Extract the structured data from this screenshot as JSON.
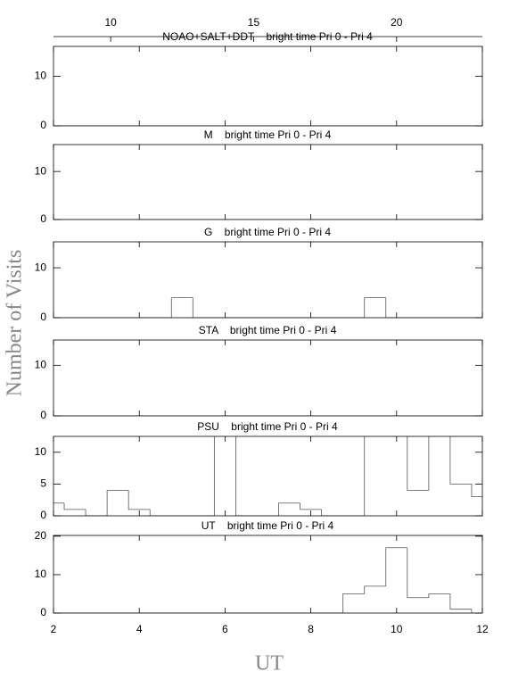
{
  "figure": {
    "xlabel": "UT",
    "ylabel": "Number of Visits",
    "xlim": [
      2,
      12
    ],
    "xticks": [
      2,
      4,
      6,
      8,
      10,
      12
    ],
    "top_xlim": [
      8,
      23
    ],
    "top_xticks": [
      10,
      15,
      20
    ]
  },
  "chart_data": [
    {
      "type": "histogram",
      "title": "NOAO+SALT+DDT    bright time Pri 0 - Pri 4",
      "bins": [
        1.75,
        2.25,
        2.75,
        3.25,
        3.75,
        4.25,
        4.75,
        5.25,
        5.75,
        6.25,
        6.75,
        7.25,
        7.75,
        8.25,
        8.75,
        9.25,
        9.75,
        10.25,
        10.75,
        11.25,
        11.75,
        12.25
      ],
      "values": [
        0,
        0,
        0,
        0,
        0,
        0,
        0,
        0,
        0,
        0,
        0,
        0,
        0,
        0,
        0,
        0,
        0,
        0,
        0,
        0,
        0
      ],
      "ylim": [
        0,
        16
      ],
      "yticks": [
        0,
        10
      ]
    },
    {
      "type": "histogram",
      "title": "M    bright time Pri 0 - Pri 4",
      "bins": [
        1.75,
        2.25,
        2.75,
        3.25,
        3.75,
        4.25,
        4.75,
        5.25,
        5.75,
        6.25,
        6.75,
        7.25,
        7.75,
        8.25,
        8.75,
        9.25,
        9.75,
        10.25,
        10.75,
        11.25,
        11.75,
        12.25
      ],
      "values": [
        0,
        0,
        0,
        0,
        0,
        0,
        0,
        0,
        0,
        0,
        0,
        0,
        0,
        0,
        0,
        0,
        0,
        0,
        0,
        0,
        0
      ],
      "ylim": [
        0,
        15.6
      ],
      "yticks": [
        0,
        10
      ]
    },
    {
      "type": "histogram",
      "title": "G    bright time Pri 0 - Pri 4",
      "bins": [
        1.75,
        2.25,
        2.75,
        3.25,
        3.75,
        4.25,
        4.75,
        5.25,
        5.75,
        6.25,
        6.75,
        7.25,
        7.75,
        8.25,
        8.75,
        9.25,
        9.75,
        10.25,
        10.75,
        11.25,
        11.75,
        12.25
      ],
      "values": [
        0,
        0,
        0,
        0,
        0,
        0,
        4,
        0,
        0,
        0,
        0,
        0,
        0,
        0,
        0,
        4,
        0,
        0,
        0,
        0,
        0
      ],
      "ylim": [
        0,
        15.2
      ],
      "yticks": [
        0,
        10
      ]
    },
    {
      "type": "histogram",
      "title": "STA    bright time Pri 0 - Pri 4",
      "bins": [
        1.75,
        2.25,
        2.75,
        3.25,
        3.75,
        4.25,
        4.75,
        5.25,
        5.75,
        6.25,
        6.75,
        7.25,
        7.75,
        8.25,
        8.75,
        9.25,
        9.75,
        10.25,
        10.75,
        11.25,
        11.75,
        12.25
      ],
      "values": [
        0,
        0,
        0,
        0,
        0,
        0,
        0,
        0,
        0,
        0,
        0,
        0,
        0,
        0,
        0,
        0,
        0,
        0,
        0,
        0,
        0
      ],
      "ylim": [
        0,
        15
      ],
      "yticks": [
        0,
        10
      ]
    },
    {
      "type": "histogram",
      "title": "PSU    bright time Pri 0 - Pri 4",
      "bins": [
        1.75,
        2.25,
        2.75,
        3.25,
        3.75,
        4.25,
        4.75,
        5.25,
        5.75,
        6.25,
        6.75,
        7.25,
        7.75,
        8.25,
        8.75,
        9.25,
        9.75,
        10.25,
        10.75,
        11.25,
        11.75,
        12.25
      ],
      "values": [
        2,
        1,
        0,
        4,
        1,
        0,
        0,
        0,
        13,
        0,
        0,
        2,
        1,
        0,
        0,
        13,
        13,
        4,
        13,
        5,
        3
      ],
      "ylim": [
        0,
        12.5
      ],
      "yticks": [
        0,
        5,
        10
      ]
    },
    {
      "type": "histogram",
      "title": "UT    bright time Pri 0 - Pri 4",
      "bins": [
        1.75,
        2.25,
        2.75,
        3.25,
        3.75,
        4.25,
        4.75,
        5.25,
        5.75,
        6.25,
        6.75,
        7.25,
        7.75,
        8.25,
        8.75,
        9.25,
        9.75,
        10.25,
        10.75,
        11.25,
        11.75,
        12.25
      ],
      "values": [
        0,
        0,
        0,
        0,
        0,
        0,
        0,
        0,
        0,
        0,
        0,
        0,
        0,
        0,
        5,
        7,
        17,
        4,
        5,
        1,
        0
      ],
      "ylim": [
        0,
        20.2
      ],
      "yticks": [
        0,
        10,
        20
      ]
    }
  ]
}
